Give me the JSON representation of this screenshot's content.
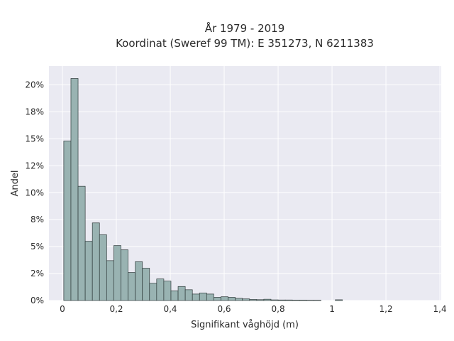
{
  "chart_data": {
    "type": "bar",
    "title_lines": [
      "År 1979 - 2019",
      "Koordinat (Sweref 99 TM): E 351273, N 6211383"
    ],
    "xlabel": "Signifikant våghöjd (m)",
    "ylabel": "Andel",
    "xlim": [
      -0.05,
      1.405
    ],
    "ylim": [
      0,
      0.2175
    ],
    "x_ticks": [
      0,
      0.2,
      0.4,
      0.6,
      0.8,
      1.0,
      1.2,
      1.4
    ],
    "x_tick_labels": [
      "0",
      "0,2",
      "0,4",
      "0,6",
      "0,8",
      "1",
      "1,2",
      "1,4"
    ],
    "y_ticks": [
      0,
      0.025,
      0.05,
      0.075,
      0.1,
      0.125,
      0.15,
      0.175,
      0.2
    ],
    "y_tick_labels": [
      "0%",
      "2%",
      "5%",
      "8%",
      "10%",
      "12%",
      "15%",
      "18%",
      "20%"
    ],
    "bin_start": 0.005,
    "bin_width": 0.0265,
    "values": [
      0.148,
      0.206,
      0.106,
      0.055,
      0.072,
      0.061,
      0.037,
      0.051,
      0.047,
      0.026,
      0.036,
      0.03,
      0.016,
      0.02,
      0.018,
      0.009,
      0.013,
      0.01,
      0.006,
      0.007,
      0.006,
      0.003,
      0.0035,
      0.003,
      0.002,
      0.0015,
      0.001,
      0.0008,
      0.0012,
      0.0006,
      0.0005,
      0.0005,
      0.0004,
      0.0004,
      0.0003,
      0.0003,
      0,
      0,
      0.0007
    ],
    "grid": true,
    "background": "#eaeaf2",
    "bar_color": "#99b3b2",
    "bar_edge_color": "#2f3b3b"
  }
}
